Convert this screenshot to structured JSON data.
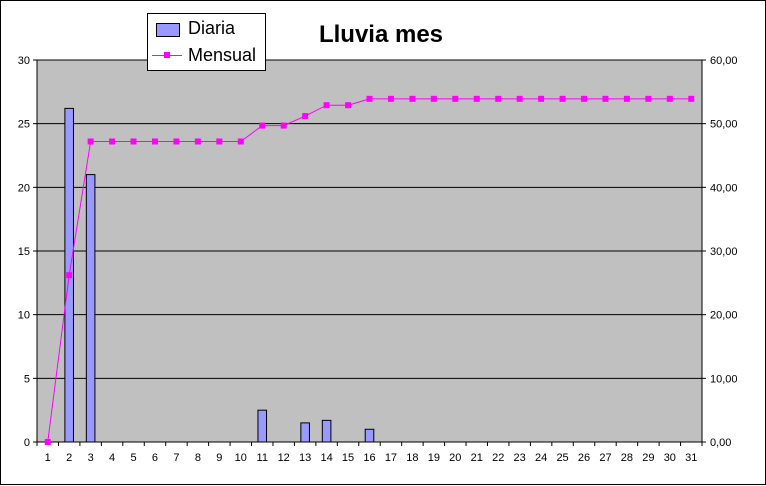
{
  "chart_data": {
    "type": "bar+line",
    "title": "Lluvia mes",
    "categories": [
      "1",
      "2",
      "3",
      "4",
      "5",
      "6",
      "7",
      "8",
      "9",
      "10",
      "11",
      "12",
      "13",
      "14",
      "15",
      "16",
      "17",
      "18",
      "19",
      "20",
      "21",
      "22",
      "23",
      "24",
      "25",
      "26",
      "27",
      "28",
      "29",
      "30",
      "31"
    ],
    "series": [
      {
        "name": "Diaria",
        "type": "bar",
        "axis": "left",
        "color": "#9999ff",
        "values": [
          0,
          26.2,
          21.0,
          0,
          0,
          0,
          0,
          0,
          0,
          0,
          2.5,
          0,
          1.5,
          1.7,
          0,
          1.0,
          0,
          0,
          0,
          0,
          0,
          0,
          0,
          0,
          0,
          0,
          0,
          0,
          0,
          0,
          0
        ]
      },
      {
        "name": "Mensual",
        "type": "line",
        "axis": "right",
        "color": "#ff00ff",
        "values": [
          0,
          26.2,
          47.2,
          47.2,
          47.2,
          47.2,
          47.2,
          47.2,
          47.2,
          47.2,
          49.7,
          49.7,
          51.2,
          52.9,
          52.9,
          53.9,
          53.9,
          53.9,
          53.9,
          53.9,
          53.9,
          53.9,
          53.9,
          53.9,
          53.9,
          53.9,
          53.9,
          53.9,
          53.9,
          53.9,
          53.9
        ]
      }
    ],
    "y_left": {
      "min": 0,
      "max": 30,
      "ticks": [
        "0",
        "5",
        "10",
        "15",
        "20",
        "25",
        "30"
      ]
    },
    "y_right": {
      "min": 0,
      "max": 60,
      "ticks": [
        "0,00",
        "10,00",
        "20,00",
        "30,00",
        "40,00",
        "50,00",
        "60,00"
      ]
    },
    "grid": true,
    "legend": "top-left",
    "plot_background": "#c0c0c0"
  }
}
